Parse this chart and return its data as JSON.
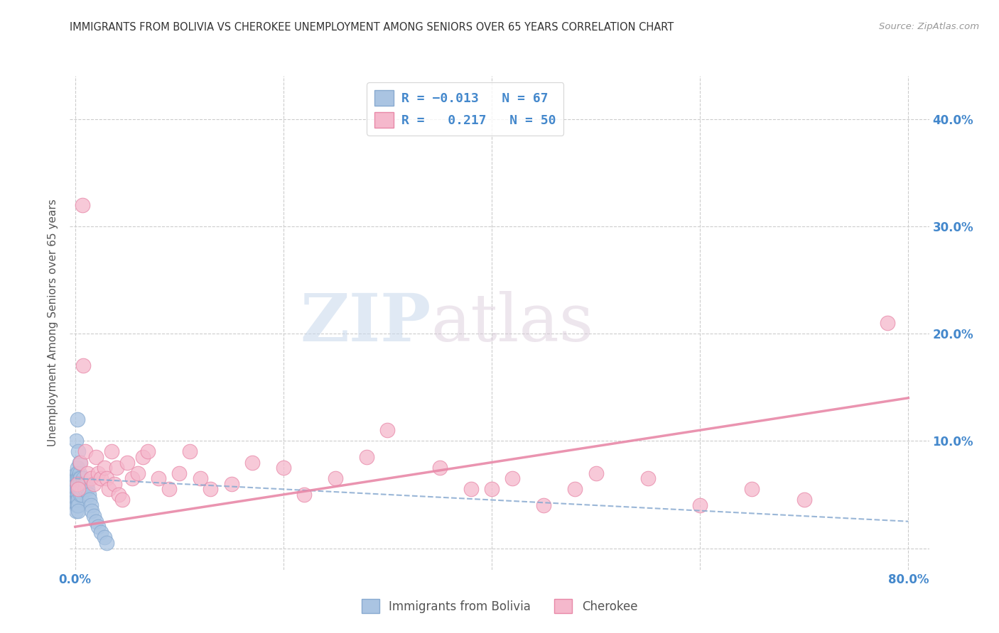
{
  "title": "IMMIGRANTS FROM BOLIVIA VS CHEROKEE UNEMPLOYMENT AMONG SENIORS OVER 65 YEARS CORRELATION CHART",
  "source": "Source: ZipAtlas.com",
  "ylabel": "Unemployment Among Seniors over 65 years",
  "yticks": [
    "",
    "10.0%",
    "20.0%",
    "30.0%",
    "40.0%"
  ],
  "ytick_vals": [
    0.0,
    0.1,
    0.2,
    0.3,
    0.4
  ],
  "xlim": [
    -0.005,
    0.82
  ],
  "ylim": [
    -0.02,
    0.44
  ],
  "legend1_label": "Immigrants from Bolivia",
  "legend2_label": "Cherokee",
  "r1": "-0.013",
  "n1": "67",
  "r2": "0.217",
  "n2": "50",
  "color_blue": "#aac4e2",
  "color_pink": "#f5b8cc",
  "edge_blue": "#88aad0",
  "edge_pink": "#e888a8",
  "axis_color": "#4488cc",
  "grid_color": "#cccccc",
  "bolivia_x": [
    0.001,
    0.001,
    0.001,
    0.001,
    0.001,
    0.001,
    0.001,
    0.001,
    0.001,
    0.001,
    0.002,
    0.002,
    0.002,
    0.002,
    0.002,
    0.002,
    0.002,
    0.002,
    0.002,
    0.002,
    0.002,
    0.002,
    0.002,
    0.002,
    0.002,
    0.003,
    0.003,
    0.003,
    0.003,
    0.003,
    0.003,
    0.003,
    0.004,
    0.004,
    0.004,
    0.004,
    0.005,
    0.005,
    0.005,
    0.005,
    0.006,
    0.006,
    0.006,
    0.007,
    0.007,
    0.008,
    0.008,
    0.009,
    0.009,
    0.01,
    0.01,
    0.011,
    0.012,
    0.013,
    0.014,
    0.015,
    0.016,
    0.018,
    0.02,
    0.022,
    0.025,
    0.028,
    0.03,
    0.001,
    0.002,
    0.003,
    0.004
  ],
  "bolivia_y": [
    0.06,
    0.055,
    0.05,
    0.045,
    0.04,
    0.035,
    0.07,
    0.065,
    0.06,
    0.055,
    0.07,
    0.065,
    0.06,
    0.055,
    0.05,
    0.045,
    0.04,
    0.075,
    0.07,
    0.065,
    0.06,
    0.055,
    0.05,
    0.045,
    0.04,
    0.065,
    0.06,
    0.055,
    0.05,
    0.045,
    0.04,
    0.035,
    0.07,
    0.065,
    0.06,
    0.055,
    0.065,
    0.06,
    0.055,
    0.05,
    0.06,
    0.055,
    0.05,
    0.06,
    0.055,
    0.065,
    0.06,
    0.06,
    0.055,
    0.06,
    0.055,
    0.06,
    0.055,
    0.05,
    0.045,
    0.04,
    0.035,
    0.03,
    0.025,
    0.02,
    0.015,
    0.01,
    0.005,
    0.1,
    0.12,
    0.09,
    0.08
  ],
  "cherokee_x": [
    0.002,
    0.003,
    0.005,
    0.007,
    0.008,
    0.01,
    0.012,
    0.015,
    0.018,
    0.02,
    0.022,
    0.025,
    0.028,
    0.03,
    0.032,
    0.035,
    0.038,
    0.04,
    0.042,
    0.045,
    0.05,
    0.055,
    0.06,
    0.065,
    0.07,
    0.08,
    0.09,
    0.1,
    0.11,
    0.12,
    0.13,
    0.15,
    0.17,
    0.2,
    0.22,
    0.25,
    0.28,
    0.3,
    0.35,
    0.38,
    0.4,
    0.42,
    0.45,
    0.48,
    0.5,
    0.55,
    0.6,
    0.65,
    0.7,
    0.78
  ],
  "cherokee_y": [
    0.06,
    0.055,
    0.08,
    0.32,
    0.17,
    0.09,
    0.07,
    0.065,
    0.06,
    0.085,
    0.07,
    0.065,
    0.075,
    0.065,
    0.055,
    0.09,
    0.06,
    0.075,
    0.05,
    0.045,
    0.08,
    0.065,
    0.07,
    0.085,
    0.09,
    0.065,
    0.055,
    0.07,
    0.09,
    0.065,
    0.055,
    0.06,
    0.08,
    0.075,
    0.05,
    0.065,
    0.085,
    0.11,
    0.075,
    0.055,
    0.055,
    0.065,
    0.04,
    0.055,
    0.07,
    0.065,
    0.04,
    0.055,
    0.045,
    0.21
  ],
  "watermark_zip": "ZIP",
  "watermark_atlas": "atlas",
  "trend_blue_start_y": 0.065,
  "trend_blue_end_y": 0.025,
  "trend_pink_start_y": 0.02,
  "trend_pink_end_y": 0.14
}
